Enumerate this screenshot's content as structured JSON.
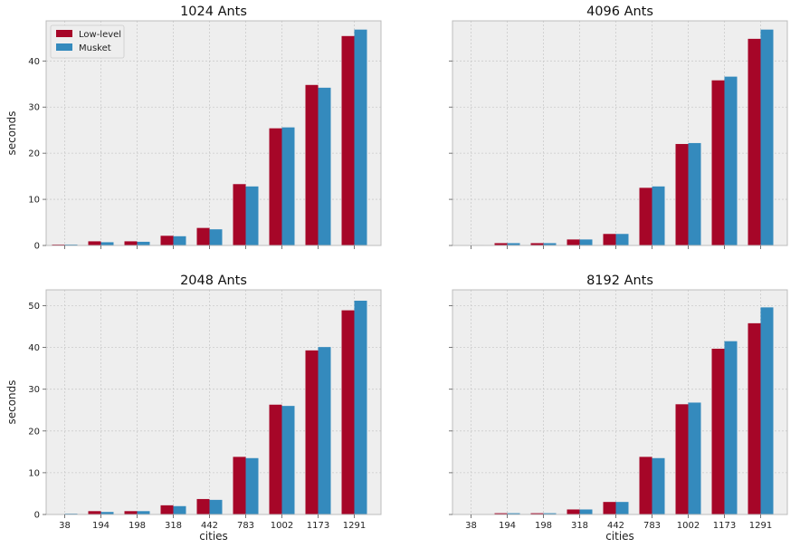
{
  "chart_data": {
    "type": "bar",
    "layout": "2x2 grid, shared x (cities) per column, shared y (seconds) per row",
    "grid": true,
    "colors": {
      "Low-level": "#A60628",
      "Musket": "#348ABD",
      "panel_bg": "#EEEEEE",
      "grid": "#CBCBCB"
    },
    "categories": [
      "38",
      "194",
      "198",
      "318",
      "442",
      "783",
      "1002",
      "1173",
      "1291"
    ],
    "xlabel": "cities",
    "ylabel": "seconds",
    "legend": {
      "placement": "top-left",
      "entries": [
        "Low-level",
        "Musket"
      ]
    },
    "panels": [
      {
        "title": "1024 Ants",
        "ylim": [
          0,
          48.7
        ],
        "yticks": [
          0,
          10,
          20,
          30,
          40
        ],
        "show_ylabel": true,
        "show_ytick_labels": true,
        "show_xlabel": false,
        "show_xtick_labels": false,
        "show_legend": true,
        "series": [
          {
            "name": "Low-level",
            "values": [
              0.2,
              0.9,
              0.9,
              2.1,
              3.8,
              13.3,
              25.4,
              34.8,
              45.4
            ]
          },
          {
            "name": "Musket",
            "values": [
              0.2,
              0.7,
              0.8,
              2.0,
              3.5,
              12.8,
              25.6,
              34.2,
              46.8
            ]
          }
        ]
      },
      {
        "title": "4096 Ants",
        "ylim": [
          0,
          48.7
        ],
        "yticks": [
          0,
          10,
          20,
          30,
          40
        ],
        "show_ylabel": false,
        "show_ytick_labels": false,
        "show_xlabel": false,
        "show_xtick_labels": false,
        "show_legend": false,
        "series": [
          {
            "name": "Low-level",
            "values": [
              0.0,
              0.5,
              0.5,
              1.3,
              2.5,
              12.5,
              22.0,
              35.8,
              44.8
            ]
          },
          {
            "name": "Musket",
            "values": [
              0.1,
              0.5,
              0.5,
              1.3,
              2.5,
              12.8,
              22.2,
              36.6,
              46.8
            ]
          }
        ]
      },
      {
        "title": "2048 Ants",
        "ylim": [
          0,
          53.8
        ],
        "yticks": [
          0,
          10,
          20,
          30,
          40,
          50
        ],
        "show_ylabel": true,
        "show_ytick_labels": true,
        "show_xlabel": true,
        "show_xtick_labels": true,
        "show_legend": false,
        "series": [
          {
            "name": "Low-level",
            "values": [
              0.0,
              0.8,
              0.8,
              2.2,
              3.7,
              13.8,
              26.3,
              39.3,
              48.9
            ]
          },
          {
            "name": "Musket",
            "values": [
              0.2,
              0.6,
              0.8,
              2.0,
              3.5,
              13.5,
              26.0,
              40.1,
              51.2
            ]
          }
        ]
      },
      {
        "title": "8192 Ants",
        "ylim": [
          0,
          53.8
        ],
        "yticks": [
          0,
          10,
          20,
          30,
          40,
          50
        ],
        "show_ylabel": false,
        "show_ytick_labels": false,
        "show_xlabel": true,
        "show_xtick_labels": true,
        "show_legend": false,
        "series": [
          {
            "name": "Low-level",
            "values": [
              0.0,
              0.3,
              0.3,
              1.2,
              3.0,
              13.8,
              26.4,
              39.7,
              45.8
            ]
          },
          {
            "name": "Musket",
            "values": [
              0.0,
              0.3,
              0.3,
              1.2,
              3.0,
              13.5,
              26.8,
              41.5,
              49.6
            ]
          }
        ]
      }
    ]
  }
}
